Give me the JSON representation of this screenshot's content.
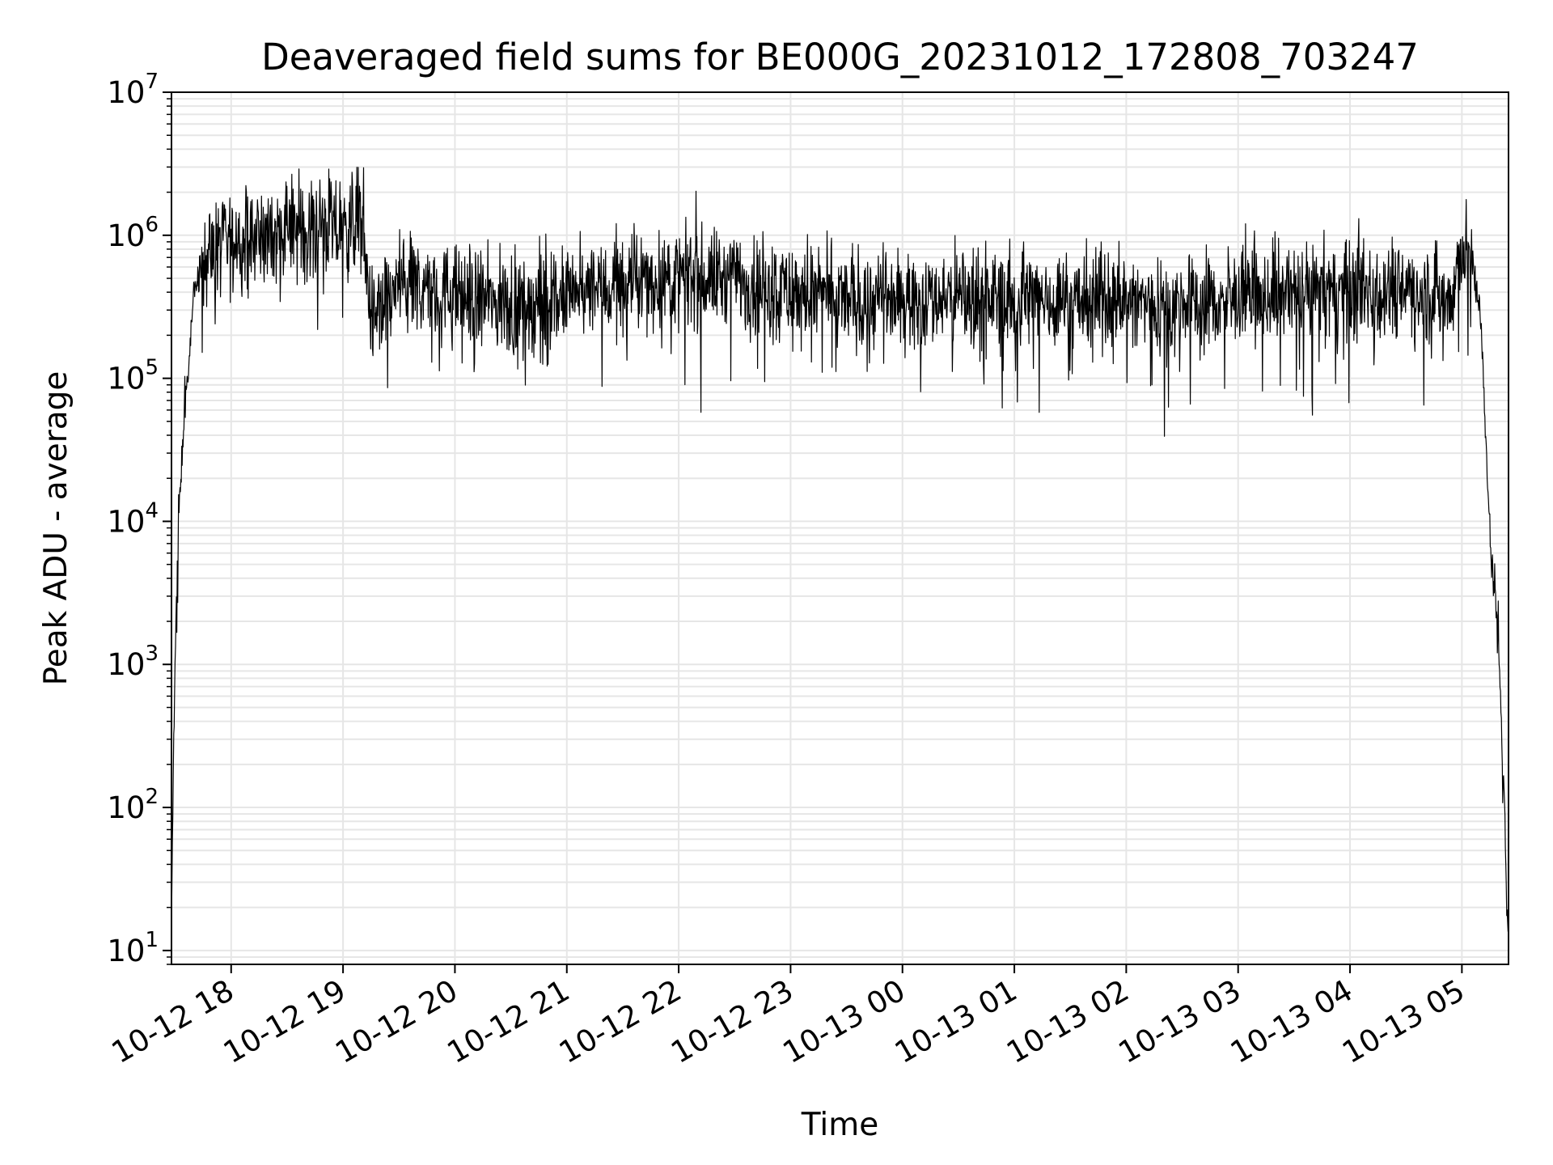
{
  "chart_data": {
    "type": "line",
    "title": "Deaveraged field sums for BE000G_20231012_172808_703247",
    "xlabel": "Time",
    "ylabel": "Peak ADU - average",
    "y_scale": "log",
    "ylim": [
      8,
      10000000
    ],
    "y_ticks": [
      {
        "value": 10,
        "base": "10",
        "exp": "1"
      },
      {
        "value": 100,
        "base": "10",
        "exp": "2"
      },
      {
        "value": 1000,
        "base": "10",
        "exp": "3"
      },
      {
        "value": 10000,
        "base": "10",
        "exp": "4"
      },
      {
        "value": 100000,
        "base": "10",
        "exp": "5"
      },
      {
        "value": 1000000,
        "base": "10",
        "exp": "6"
      },
      {
        "value": 10000000,
        "base": "10",
        "exp": "7"
      }
    ],
    "xlim": [
      "2023-10-12 17:28",
      "2023-10-13 05:25"
    ],
    "x_ticks": [
      {
        "time": "2023-10-12 18:00",
        "label": "10-12 18"
      },
      {
        "time": "2023-10-12 19:00",
        "label": "10-12 19"
      },
      {
        "time": "2023-10-12 20:00",
        "label": "10-12 20"
      },
      {
        "time": "2023-10-12 21:00",
        "label": "10-12 21"
      },
      {
        "time": "2023-10-12 22:00",
        "label": "10-12 22"
      },
      {
        "time": "2023-10-12 23:00",
        "label": "10-12 23"
      },
      {
        "time": "2023-10-13 00:00",
        "label": "10-13 00"
      },
      {
        "time": "2023-10-13 01:00",
        "label": "10-13 01"
      },
      {
        "time": "2023-10-13 02:00",
        "label": "10-13 02"
      },
      {
        "time": "2023-10-13 03:00",
        "label": "10-13 03"
      },
      {
        "time": "2023-10-13 04:00",
        "label": "10-13 04"
      },
      {
        "time": "2023-10-13 05:00",
        "label": "10-13 05"
      }
    ],
    "grid": true,
    "line_color": "#000000",
    "grid_color": "#e6e6e6",
    "series": [
      {
        "x": [
          "2023-10-12 17:28",
          "2023-10-12 17:29",
          "2023-10-12 17:30",
          "2023-10-12 17:31",
          "2023-10-12 17:33",
          "2023-10-12 17:35",
          "2023-10-12 17:38",
          "2023-10-12 17:40",
          "2023-10-12 17:45",
          "2023-10-12 18:00",
          "2023-10-12 18:20",
          "2023-10-12 18:40",
          "2023-10-12 18:50",
          "2023-10-12 19:00",
          "2023-10-12 19:10",
          "2023-10-12 19:15",
          "2023-10-12 19:30",
          "2023-10-12 20:00",
          "2023-10-12 20:30",
          "2023-10-12 21:00",
          "2023-10-12 21:30",
          "2023-10-12 22:00",
          "2023-10-12 22:30",
          "2023-10-12 23:00",
          "2023-10-12 23:30",
          "2023-10-13 00:00",
          "2023-10-13 00:30",
          "2023-10-13 01:00",
          "2023-10-13 01:30",
          "2023-10-13 02:00",
          "2023-10-13 02:30",
          "2023-10-13 03:00",
          "2023-10-13 03:30",
          "2023-10-13 04:00",
          "2023-10-13 04:30",
          "2023-10-13 04:55",
          "2023-10-13 05:00",
          "2023-10-13 05:05",
          "2023-10-13 05:10",
          "2023-10-13 05:13",
          "2023-10-13 05:16",
          "2023-10-13 05:19",
          "2023-10-13 05:21",
          "2023-10-13 05:23",
          "2023-10-13 05:24",
          "2023-10-13 05:25"
        ],
        "y": [
          15,
          200,
          1000,
          5000,
          20000,
          60000,
          150000,
          400000,
          700000,
          900000,
          1000000,
          1100000,
          1200000,
          1000000,
          1500000,
          250000,
          450000,
          380000,
          320000,
          360000,
          450000,
          500000,
          500000,
          400000,
          350000,
          350000,
          380000,
          360000,
          350000,
          350000,
          320000,
          350000,
          400000,
          400000,
          450000,
          350000,
          800000,
          700000,
          300000,
          30000,
          5000,
          2000,
          500,
          100,
          20,
          15
        ]
      }
    ]
  }
}
